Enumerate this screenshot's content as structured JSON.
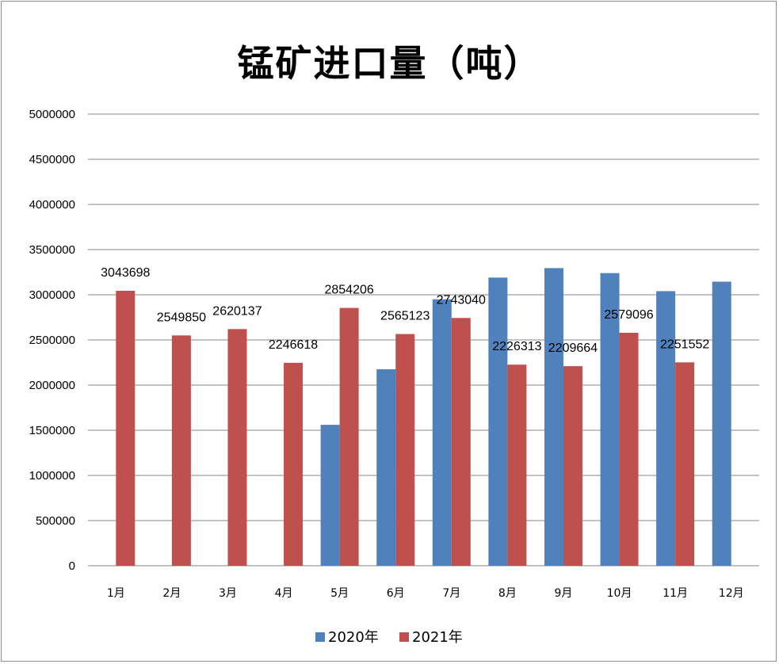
{
  "chart_data": {
    "type": "bar",
    "title": "锰矿进口量（吨）",
    "categories": [
      "1月",
      "2月",
      "3月",
      "4月",
      "5月",
      "6月",
      "7月",
      "8月",
      "9月",
      "10月",
      "11月",
      "12月"
    ],
    "yticks": [
      "0",
      "500000",
      "1000000",
      "1500000",
      "2000000",
      "2500000",
      "3000000",
      "3500000",
      "4000000",
      "4500000",
      "5000000"
    ],
    "ylim": [
      0,
      5000000
    ],
    "grid": true,
    "legend_position": "bottom",
    "series": [
      {
        "name": "2020年",
        "color": "#4f81bd",
        "values": [
          null,
          null,
          null,
          null,
          1560000,
          2175000,
          2950000,
          3190000,
          3295000,
          3240000,
          3040000,
          3145000
        ],
        "labels": [
          "",
          "",
          "",
          "",
          "",
          "",
          "",
          "",
          "",
          "",
          "",
          ""
        ]
      },
      {
        "name": "2021年",
        "color": "#c0504d",
        "values": [
          3043698,
          2549850,
          2620137,
          2246618,
          2854206,
          2565123,
          2743040,
          2226313,
          2209664,
          2579096,
          2251552,
          null
        ],
        "labels": [
          "3043698",
          "2549850",
          "2620137",
          "2246618",
          "2854206",
          "2565123",
          "2743040",
          "2226313",
          "2209664",
          "2579096",
          "2251552",
          ""
        ]
      }
    ]
  }
}
